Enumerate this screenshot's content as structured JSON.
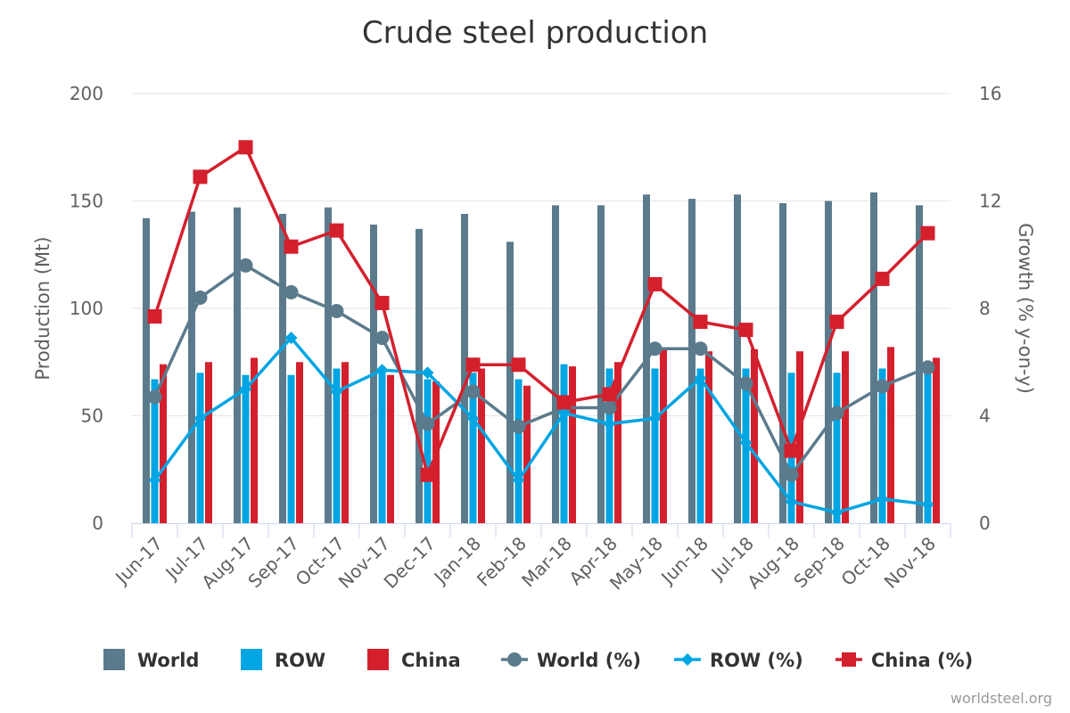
{
  "chart_data": {
    "type": "bar",
    "title": "Crude steel production",
    "categories": [
      "Jun-17",
      "Jul-17",
      "Aug-17",
      "Sep-17",
      "Oct-17",
      "Nov-17",
      "Dec-17",
      "Jan-18",
      "Feb-18",
      "Mar-18",
      "Apr-18",
      "May-18",
      "Jun-18",
      "Jul-18",
      "Aug-18",
      "Sep-18",
      "Oct-18",
      "Nov-18"
    ],
    "y_left": {
      "label": "Production (Mt)",
      "range": [
        0,
        200
      ],
      "ticks": [
        "0",
        "50",
        "100",
        "150",
        "200"
      ]
    },
    "y_right": {
      "label": "Growth (% y-on-y)",
      "range": [
        0,
        16
      ],
      "ticks": [
        "0",
        "4",
        "8",
        "12",
        "16"
      ]
    },
    "grid": true,
    "legend_position": "bottom",
    "series": [
      {
        "name": "World",
        "type": "bar",
        "axis": "left",
        "color": "#5b7b8c",
        "values": [
          142,
          145,
          147,
          144,
          147,
          139,
          137,
          144,
          131,
          148,
          148,
          153,
          151,
          153,
          149,
          150,
          154,
          148
        ]
      },
      {
        "name": "ROW",
        "type": "bar",
        "axis": "left",
        "color": "#00a5e3",
        "values": [
          67,
          70,
          69,
          69,
          72,
          70,
          67,
          70,
          67,
          74,
          72,
          72,
          72,
          72,
          70,
          70,
          72,
          71
        ]
      },
      {
        "name": "China",
        "type": "bar",
        "axis": "left",
        "color": "#d4202d",
        "values": [
          74,
          75,
          77,
          75,
          75,
          69,
          66,
          72,
          64,
          73,
          75,
          81,
          80,
          81,
          80,
          80,
          82,
          77
        ]
      },
      {
        "name": "World (%)",
        "type": "line",
        "axis": "right",
        "marker": "circle",
        "color": "#5b7b8c",
        "values": [
          4.7,
          8.4,
          9.6,
          8.6,
          7.9,
          6.9,
          3.7,
          4.9,
          3.6,
          4.3,
          4.3,
          6.5,
          6.5,
          5.2,
          1.8,
          4.1,
          5.1,
          5.8
        ]
      },
      {
        "name": "ROW (%)",
        "type": "line",
        "axis": "right",
        "marker": "diamond",
        "color": "#00a5e3",
        "values": [
          1.6,
          3.9,
          5.0,
          6.9,
          4.9,
          5.7,
          5.6,
          3.9,
          1.6,
          4.1,
          3.7,
          3.9,
          5.4,
          3.0,
          0.8,
          0.4,
          0.9,
          0.7
        ]
      },
      {
        "name": "China (%)",
        "type": "line",
        "axis": "right",
        "marker": "square",
        "color": "#d4202d",
        "values": [
          7.7,
          12.9,
          14.0,
          10.3,
          10.9,
          8.2,
          1.8,
          5.9,
          5.9,
          4.5,
          4.8,
          8.9,
          7.5,
          7.2,
          2.7,
          7.5,
          9.1,
          10.8
        ]
      }
    ],
    "credit": "worldsteel.org"
  }
}
